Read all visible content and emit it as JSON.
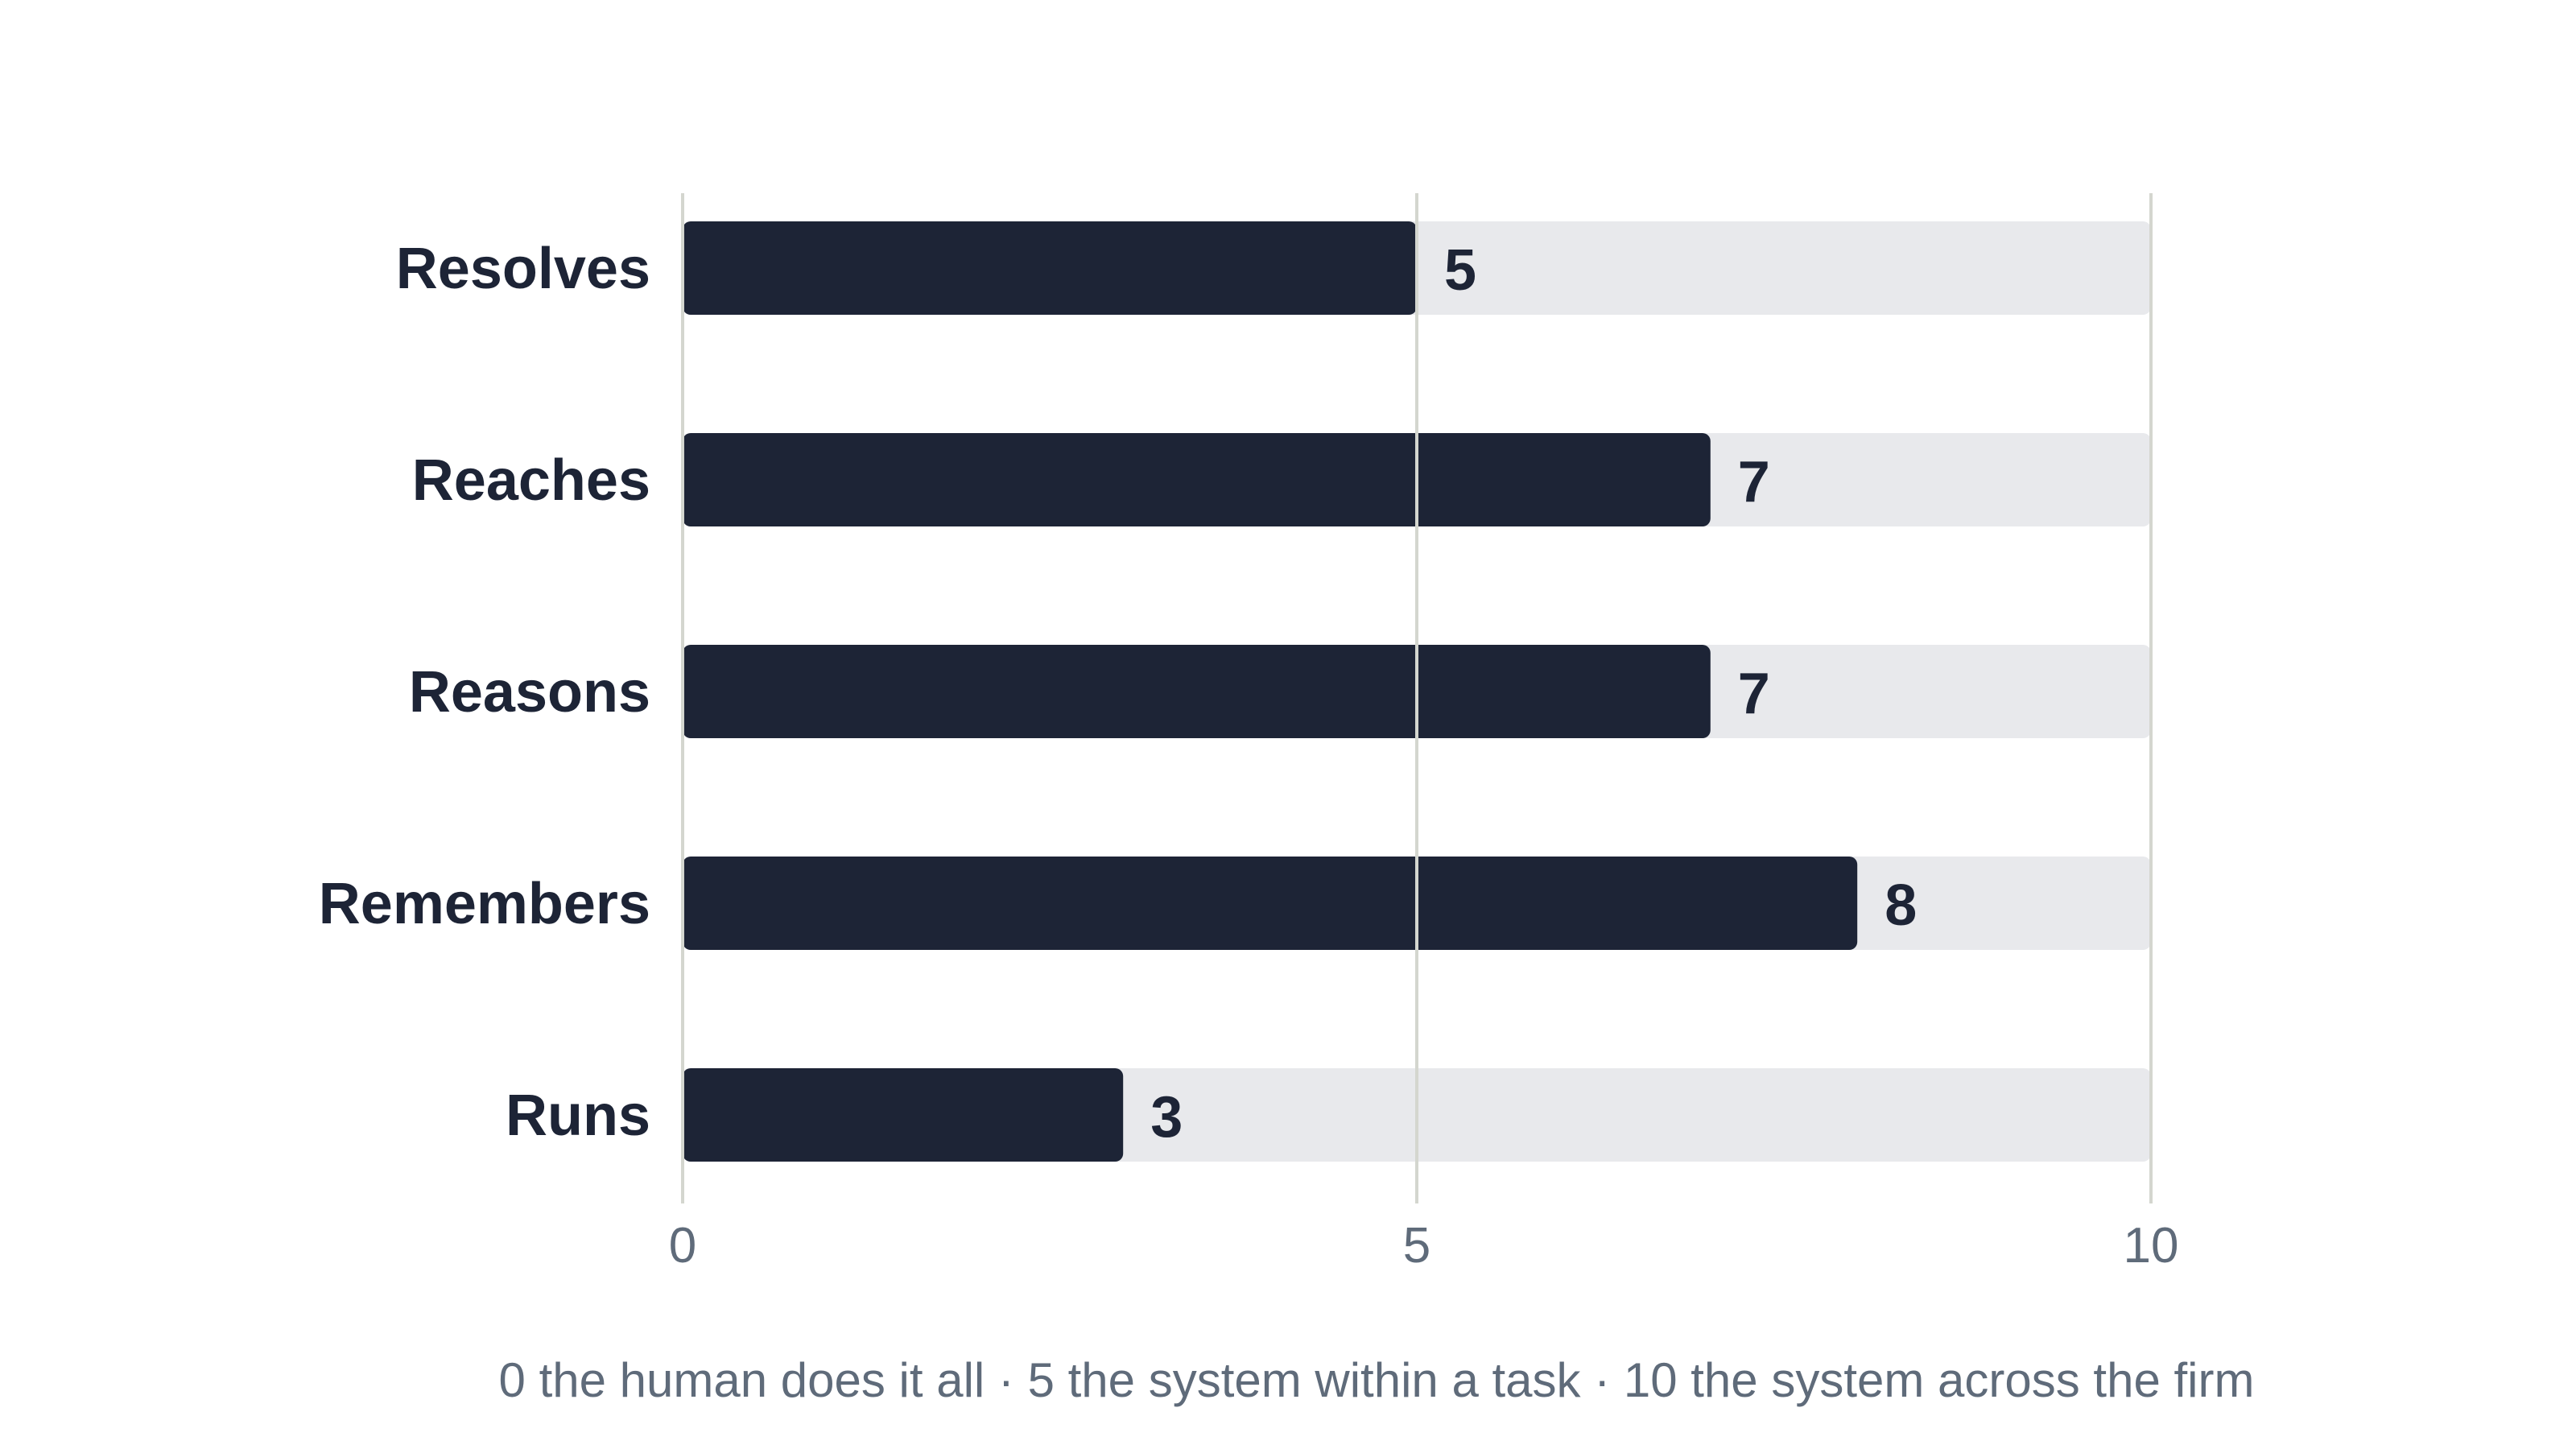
{
  "chart_data": {
    "type": "bar",
    "orientation": "horizontal",
    "categories": [
      "Resolves",
      "Reaches",
      "Reasons",
      "Remembers",
      "Runs"
    ],
    "values": [
      5,
      7,
      7,
      8,
      3
    ],
    "xlim": [
      0,
      10
    ],
    "x_ticks": [
      0,
      5,
      10
    ],
    "x_tick_labels": [
      "0",
      "5",
      "10"
    ],
    "grid": true,
    "title": "",
    "xlabel": "",
    "ylabel": "",
    "caption": "0 the human does it all · 5 the system within a task · 10 the system across the firm",
    "colors": {
      "bar": "#1d2436",
      "track": "#e8e9ec",
      "grid": "#d4d6cf",
      "label": "#1d2436",
      "tick": "#5f6b7a"
    }
  }
}
